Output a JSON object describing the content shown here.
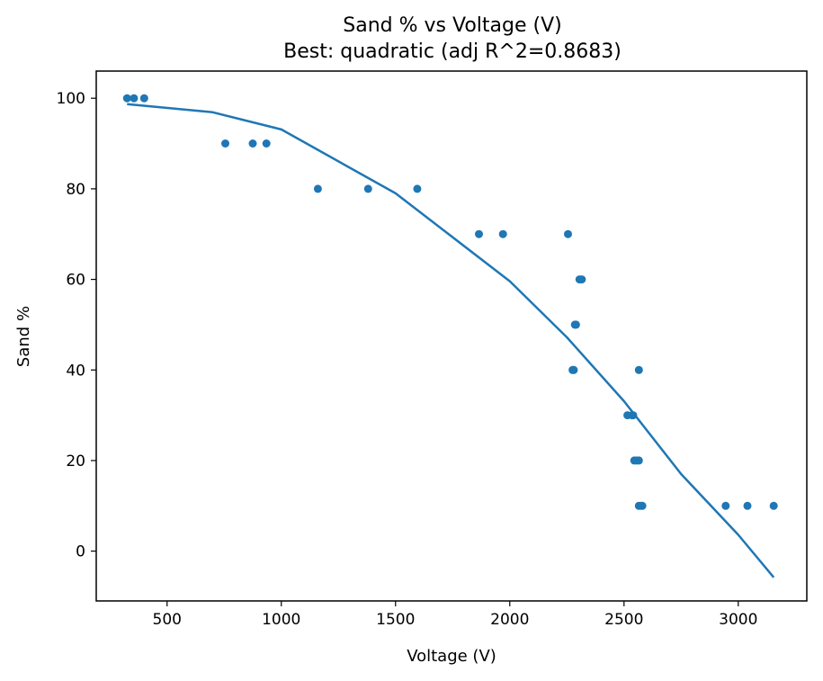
{
  "chart_data": {
    "type": "scatter",
    "title": "Sand % vs Voltage (V)",
    "subtitle": "Best: quadratic (adj R^2=0.8683)",
    "xlabel": "Voltage (V)",
    "ylabel": "Sand %",
    "xlim": [
      190,
      3300
    ],
    "ylim": [
      -11,
      106
    ],
    "xticks": [
      500,
      1000,
      1500,
      2000,
      2500,
      3000
    ],
    "yticks": [
      0,
      20,
      40,
      60,
      80,
      100
    ],
    "grid": false,
    "colors": {
      "points": "#1f77b4",
      "fit": "#1f77b4"
    },
    "points": [
      {
        "x": 325,
        "y": 100
      },
      {
        "x": 355,
        "y": 100
      },
      {
        "x": 400,
        "y": 100
      },
      {
        "x": 755,
        "y": 90
      },
      {
        "x": 875,
        "y": 90
      },
      {
        "x": 935,
        "y": 90
      },
      {
        "x": 1160,
        "y": 80
      },
      {
        "x": 1380,
        "y": 80
      },
      {
        "x": 1595,
        "y": 80
      },
      {
        "x": 1865,
        "y": 70
      },
      {
        "x": 1970,
        "y": 70
      },
      {
        "x": 2255,
        "y": 70
      },
      {
        "x": 2305,
        "y": 60
      },
      {
        "x": 2315,
        "y": 60
      },
      {
        "x": 2285,
        "y": 50
      },
      {
        "x": 2290,
        "y": 50
      },
      {
        "x": 2275,
        "y": 40
      },
      {
        "x": 2280,
        "y": 40
      },
      {
        "x": 2565,
        "y": 40
      },
      {
        "x": 2515,
        "y": 30
      },
      {
        "x": 2535,
        "y": 30
      },
      {
        "x": 2540,
        "y": 30
      },
      {
        "x": 2545,
        "y": 20
      },
      {
        "x": 2555,
        "y": 20
      },
      {
        "x": 2565,
        "y": 20
      },
      {
        "x": 2565,
        "y": 10
      },
      {
        "x": 2575,
        "y": 10
      },
      {
        "x": 2580,
        "y": 10
      },
      {
        "x": 2945,
        "y": 10
      },
      {
        "x": 3040,
        "y": 10
      },
      {
        "x": 3155,
        "y": 10
      }
    ],
    "fit_curve": [
      {
        "x": 325,
        "y": 98.7
      },
      {
        "x": 700,
        "y": 96.9
      },
      {
        "x": 1000,
        "y": 93.1
      },
      {
        "x": 1500,
        "y": 79.0
      },
      {
        "x": 2000,
        "y": 59.6
      },
      {
        "x": 2250,
        "y": 47.2
      },
      {
        "x": 2500,
        "y": 33.1
      },
      {
        "x": 2750,
        "y": 17.0
      },
      {
        "x": 3000,
        "y": 3.6
      },
      {
        "x": 3155,
        "y": -5.8
      }
    ]
  }
}
